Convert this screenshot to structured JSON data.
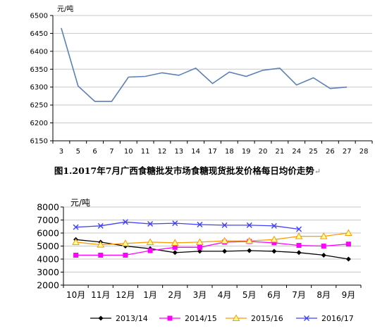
{
  "chart_data": [
    {
      "type": "line",
      "title": "",
      "unit": "元/吨",
      "xlabel": "",
      "ylabel": "",
      "ylim": [
        6150,
        6500
      ],
      "yticks": [
        6150,
        6200,
        6250,
        6300,
        6350,
        6400,
        6450,
        6500
      ],
      "categories": [
        "3",
        "5",
        "6",
        "7",
        "10",
        "11",
        "12",
        "13",
        "14",
        "17",
        "18",
        "19",
        "20",
        "21",
        "24",
        "25",
        "26",
        "27",
        "28"
      ],
      "series": [
        {
          "name": "",
          "color": "#5b7fb8",
          "values": [
            6465,
            6303,
            6260,
            6260,
            6328,
            6330,
            6340,
            6333,
            6353,
            6310,
            6342,
            6330,
            6347,
            6353,
            6306,
            6326,
            6296,
            6300,
            null
          ]
        }
      ],
      "grid": "horizontal",
      "legend": "none"
    },
    {
      "type": "line",
      "title": "",
      "unit": "元/吨",
      "xlabel": "",
      "ylabel": "",
      "ylim": [
        2000,
        8000
      ],
      "yticks": [
        2000,
        3000,
        4000,
        5000,
        6000,
        7000,
        8000
      ],
      "categories": [
        "10月",
        "11月",
        "12月",
        "1月",
        "2月",
        "3月",
        "4月",
        "5月",
        "6月",
        "7月",
        "8月",
        "9月"
      ],
      "series": [
        {
          "name": "2013/14",
          "color": "#000000",
          "marker": "diamond",
          "values": [
            5500,
            5300,
            5000,
            4800,
            4500,
            4600,
            4600,
            4650,
            4600,
            4500,
            4300,
            4000
          ]
        },
        {
          "name": "2014/15",
          "color": "#ff00ff",
          "marker": "square",
          "values": [
            4300,
            4300,
            4300,
            4650,
            4900,
            4900,
            5300,
            5350,
            5250,
            5050,
            5000,
            5150
          ]
        },
        {
          "name": "2015/16",
          "color": "#ff9900",
          "marker": "triangle",
          "values": [
            5300,
            5100,
            5200,
            5300,
            5250,
            5300,
            5400,
            5400,
            5500,
            5750,
            5750,
            6000
          ]
        },
        {
          "name": "2016/17",
          "color": "#4040ff",
          "marker": "x",
          "values": [
            6450,
            6550,
            6850,
            6700,
            6750,
            6650,
            6600,
            6600,
            6550,
            6300,
            null,
            null
          ]
        }
      ],
      "grid": "horizontal",
      "legend": "bottom"
    }
  ],
  "caption": {
    "text": "图1.2017年7月广西食糖批发市场食糖现货批发价格每日均价走势",
    "mark": "↵"
  }
}
